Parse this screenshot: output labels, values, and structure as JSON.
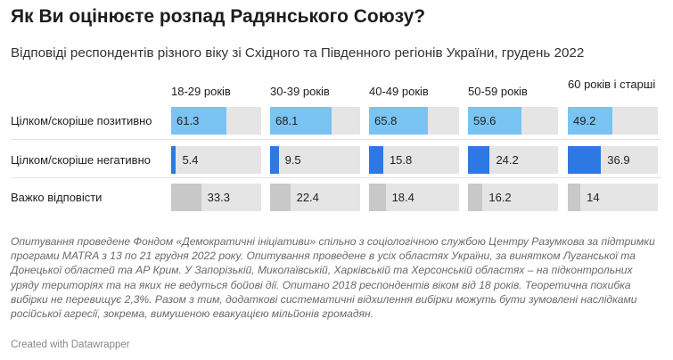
{
  "title": "Як Ви оцінюєте розпад Радянського Союзу?",
  "subtitle": "Відповіді респондентів різного віку зі Східного та Південного регіонів України, грудень 2022",
  "notes": "Опитування проведене Фондом «Демократичні ініціативи» спільно з соціологічною службою Центру Разумкова за підтримки програми MATRA з 13 по 21 грудня 2022 року. Опитування проведене в усіх областях України, за винятком Луганської та Донецької областей та АР Крим. У Запорізькій, Миколаївській, Харківській та Херсонській областях – на підконтрольних уряду територіях та на яких не ведуться бойові дії. Опитано 2018 респондентів віком від 18 років. Теоретична похибка вибірки не перевищує 2,3%. Разом з тим, додаткові систематичні відхилення вибірки можуть бути зумовлені наслідками російської агресії, зокрема, вимушеною евакуацією мільйонів громадян.",
  "credit": "Created with Datawrapper",
  "colors": {
    "positive": "#79c4f2",
    "negative": "#2e78e4",
    "hard": "#c8c8c8",
    "track": "#e5e5e5"
  },
  "chart_data": {
    "type": "table",
    "columns": [
      "18-29 років",
      "30-39 років",
      "40-49 років",
      "50-59 років",
      "60 років і старші"
    ],
    "rows": [
      {
        "label": "Цілком/скоріше позитивно",
        "color_key": "positive",
        "values": [
          61.3,
          68.1,
          65.8,
          59.6,
          49.2
        ]
      },
      {
        "label": "Цілком/скоріше негативно",
        "color_key": "negative",
        "values": [
          5.4,
          9.5,
          15.8,
          24.2,
          36.9
        ]
      },
      {
        "label": "Важко відповісти",
        "color_key": "hard",
        "values": [
          33.3,
          22.4,
          18.4,
          16.2,
          14
        ]
      }
    ],
    "value_max": 100
  }
}
